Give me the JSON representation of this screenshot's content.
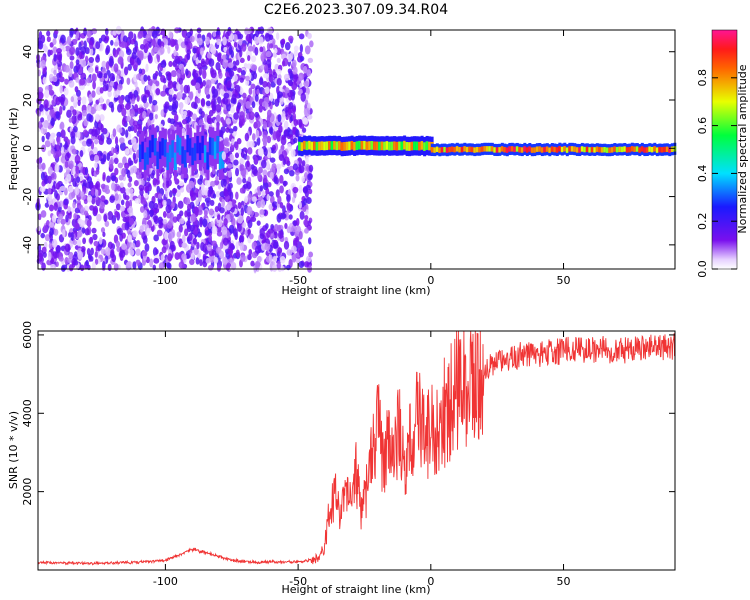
{
  "title": "C2E6.2023.307.09.34.R04",
  "colors": {
    "snr_line": "#f03434",
    "background": "#ffffff",
    "axis": "#000000"
  },
  "chart_data": [
    {
      "type": "heatmap",
      "xlabel": "Height of straight line (km)",
      "ylabel": "Frequency (Hz)",
      "xlim": [
        -148,
        92
      ],
      "ylim": [
        -50,
        49
      ],
      "x_ticks": [
        -100,
        -50,
        0,
        50
      ],
      "y_ticks": [
        -40,
        -20,
        0,
        20,
        40
      ],
      "grid": false,
      "colormap": "rainbow (purple low to magenta-red high)",
      "colorbar": {
        "label": "Normalized spectral amplitude",
        "range": [
          0,
          1
        ],
        "ticks": [
          0.0,
          0.2,
          0.4,
          0.6,
          0.8
        ]
      },
      "features": [
        {
          "x_range": [
            -148,
            -75
          ],
          "y_range": [
            -50,
            49
          ],
          "description": "scattered noise",
          "amplitude": 0.12
        },
        {
          "x_range": [
            -110,
            -78
          ],
          "y_range": [
            -10,
            6
          ],
          "description": "weak signal near 0 Hz",
          "amplitude": 0.3
        },
        {
          "x_range": [
            -78,
            -45
          ],
          "y_range": [
            -50,
            49
          ],
          "description": "scattered noise",
          "amplitude": 0.12
        },
        {
          "x_range": [
            -50,
            0
          ],
          "y_range": [
            -3,
            5
          ],
          "description": "carrier band",
          "amplitude": 0.7
        },
        {
          "x_range": [
            0,
            92
          ],
          "y_range": [
            -3,
            2
          ],
          "description": "carrier band near 0 Hz",
          "amplitude": 0.8
        }
      ]
    },
    {
      "type": "line",
      "xlabel": "Height of straight line (km)",
      "ylabel": "SNR (10 * v/v)",
      "xlim": [
        -148,
        92
      ],
      "ylim": [
        0,
        6100
      ],
      "x_ticks": [
        -100,
        -50,
        0,
        50
      ],
      "y_ticks": [
        2000,
        4000,
        6000
      ],
      "grid": false,
      "series": [
        {
          "x": [
            -148,
            -140,
            -130,
            -120,
            -110,
            -100,
            -95,
            -90,
            -85,
            -80,
            -75,
            -70,
            -65,
            -60,
            -55,
            -50,
            -45,
            -42,
            -40,
            -38,
            -36,
            -34,
            -32,
            -30,
            -28,
            -26,
            -24,
            -22,
            -20,
            -18,
            -16,
            -14,
            -12,
            -10,
            -8,
            -6,
            -4,
            -2,
            0,
            2,
            4,
            6,
            8,
            10,
            12,
            14,
            16,
            18,
            20,
            25,
            30,
            35,
            40,
            45,
            50,
            55,
            60,
            65,
            70,
            75,
            80,
            85,
            90,
            92
          ],
          "y": [
            200,
            180,
            170,
            180,
            200,
            250,
            380,
            520,
            450,
            350,
            250,
            220,
            200,
            210,
            200,
            220,
            250,
            300,
            600,
            1600,
            2000,
            1200,
            2100,
            1800,
            2500,
            1400,
            2200,
            2900,
            4000,
            2600,
            3300,
            3000,
            3600,
            2500,
            3200,
            3800,
            3900,
            3300,
            3700,
            3600,
            4200,
            3900,
            4400,
            4600,
            4800,
            4600,
            4800,
            5000,
            5100,
            5300,
            5400,
            5500,
            5500,
            5550,
            5600,
            5620,
            5600,
            5650,
            5600,
            5620,
            5650,
            5700,
            5650,
            5700
          ]
        }
      ]
    }
  ]
}
